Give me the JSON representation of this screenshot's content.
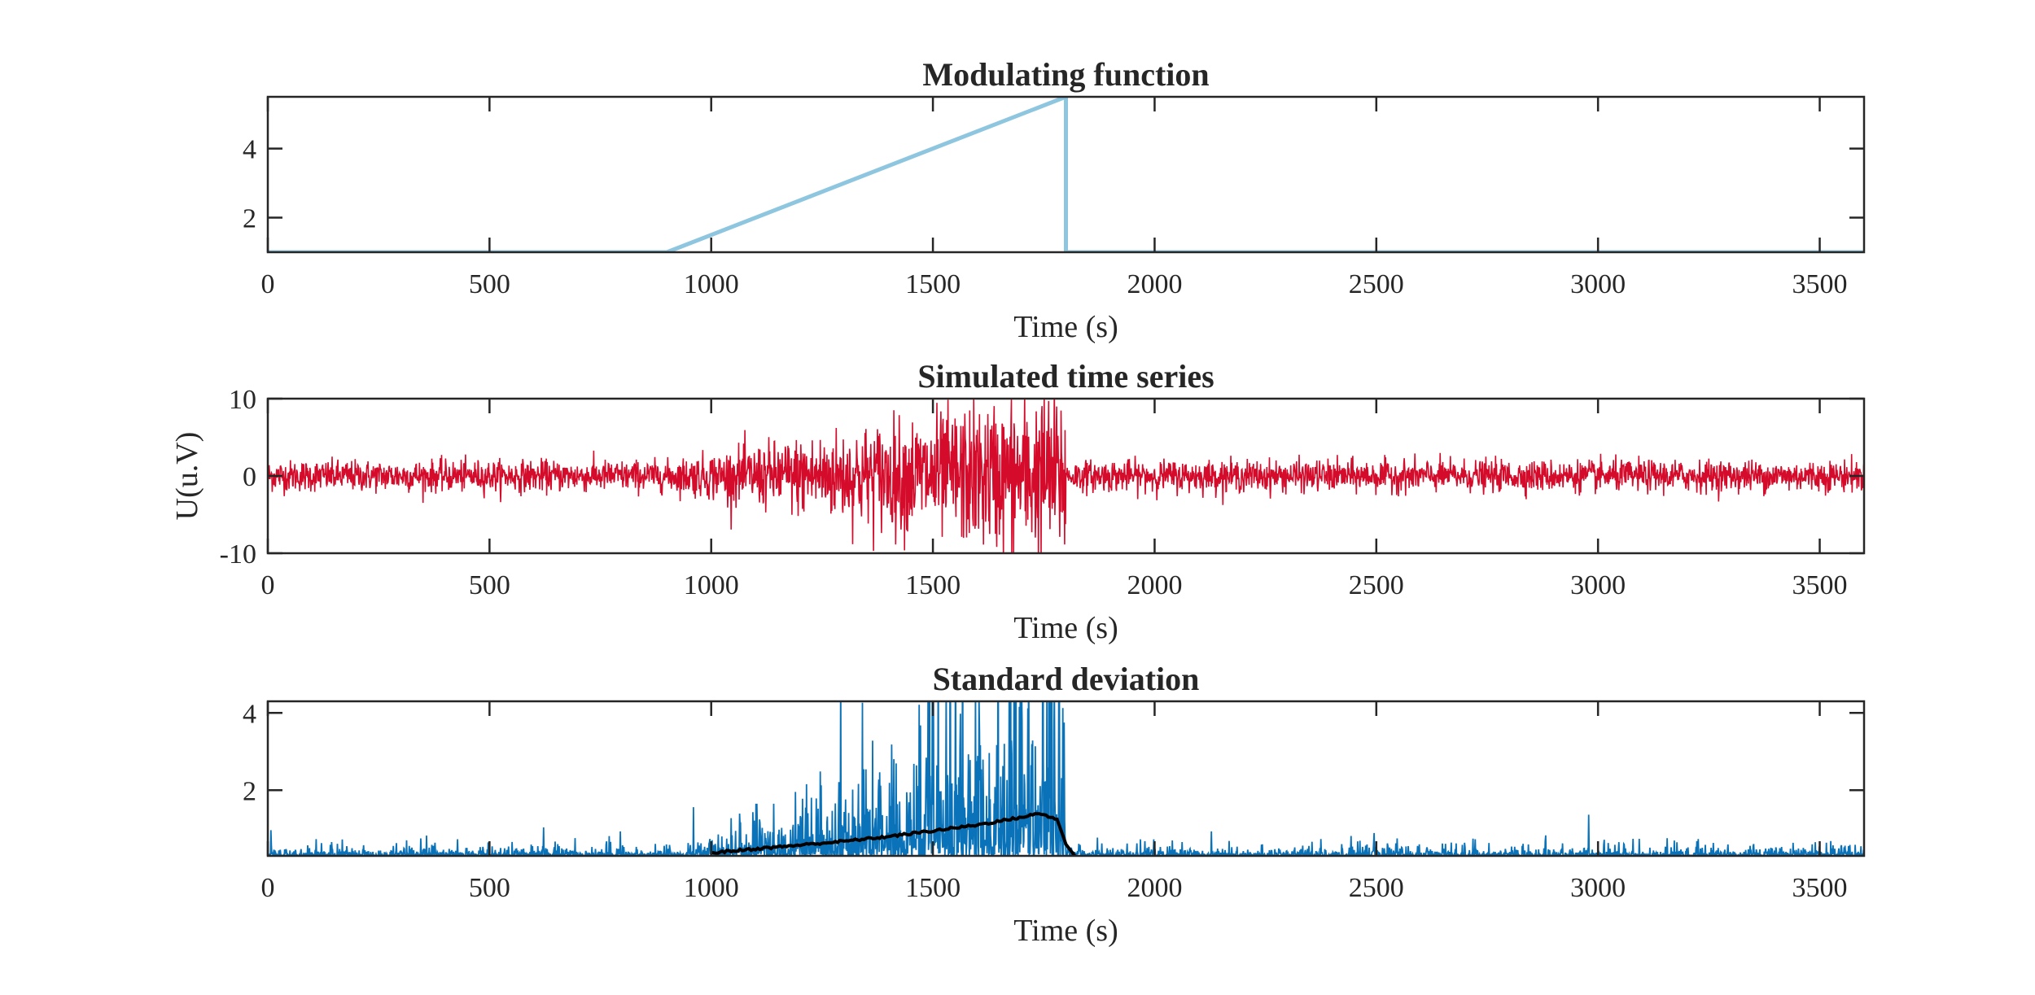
{
  "chart_data": [
    {
      "type": "line",
      "title": "Modulating function",
      "xlabel": "Time (s)",
      "ylabel": "",
      "xlim": [
        0,
        3600
      ],
      "ylim": [
        1,
        5.5
      ],
      "xticks": [
        0,
        500,
        1000,
        1500,
        2000,
        2500,
        3000,
        3500
      ],
      "yticks": [
        2,
        4
      ],
      "grid": false,
      "series": [
        {
          "color": "#8ec6e0",
          "x": [
            0,
            900,
            1800,
            1800,
            3600
          ],
          "y": [
            1,
            1,
            5.5,
            1,
            1
          ]
        }
      ]
    },
    {
      "type": "line",
      "title": "Simulated time series",
      "xlabel": "Time (s)",
      "ylabel": "U(u.V)",
      "xlim": [
        0,
        3600
      ],
      "ylim": [
        -10,
        10
      ],
      "xticks": [
        0,
        500,
        1000,
        1500,
        2000,
        2500,
        3000,
        3500
      ],
      "yticks": [
        -10,
        0,
        10
      ],
      "grid": false,
      "series": [
        {
          "color": "#d40b2a",
          "sampling_interval": 1,
          "noise_std_baseline": 1.0,
          "x_range": [
            0,
            3600
          ],
          "note_points": "dense random-noise signal modulated by the modulating function"
        }
      ]
    },
    {
      "type": "line",
      "title": "Standard deviation",
      "xlabel": "Time (s)",
      "ylabel": "",
      "xlim": [
        0,
        3600
      ],
      "ylim": [
        0.3,
        4.3
      ],
      "xticks": [
        0,
        500,
        1000,
        1500,
        2000,
        2500,
        3000,
        3500
      ],
      "yticks": [
        2,
        4
      ],
      "grid": false,
      "series": [
        {
          "color": "#0a72b8",
          "x_range": [
            0,
            3600
          ]
        },
        {
          "color": "#000000",
          "x": [
            1000,
            1100,
            1200,
            1300,
            1400,
            1500,
            1600,
            1700,
            1740,
            1780,
            1800,
            1820
          ],
          "y": [
            0.38,
            0.48,
            0.58,
            0.68,
            0.8,
            0.95,
            1.1,
            1.3,
            1.4,
            1.25,
            0.6,
            0.3
          ]
        }
      ]
    }
  ]
}
